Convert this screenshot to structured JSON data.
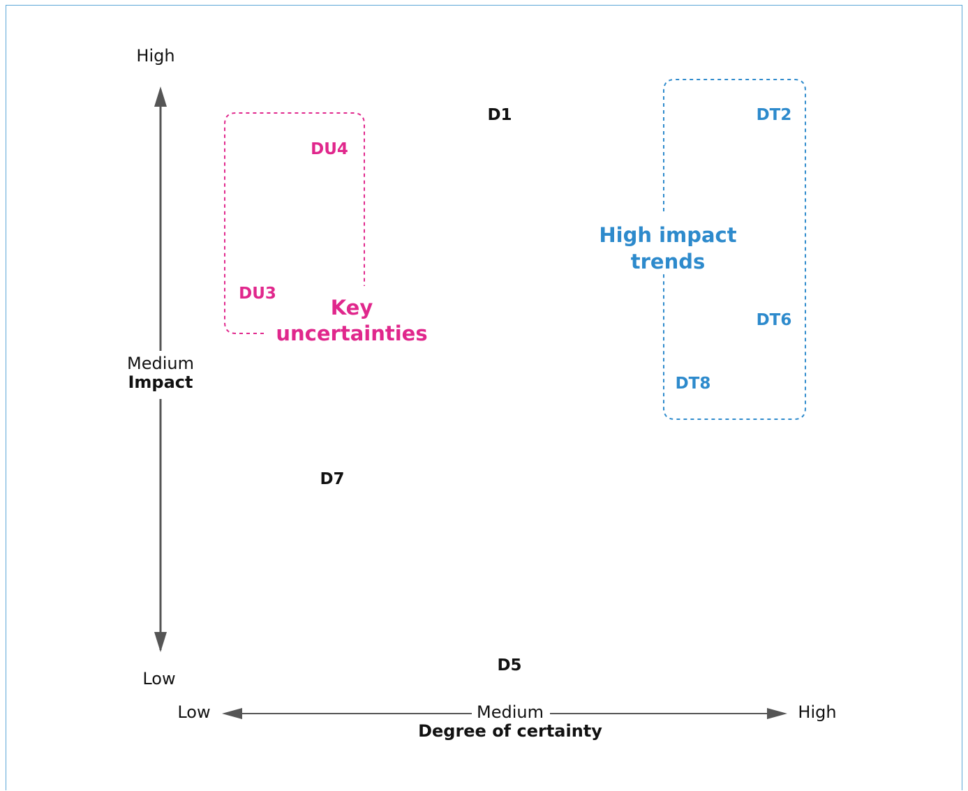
{
  "colors": {
    "uncertainty": "#e0278c",
    "trend": "#2d8acc",
    "driver": "#111111",
    "axis": "#555555",
    "frame": "#5aa6d6"
  },
  "y_axis": {
    "high": "High",
    "medium": "Medium",
    "title": "Impact",
    "low": "Low"
  },
  "x_axis": {
    "low": "Low",
    "medium": "Medium",
    "high": "High",
    "title": "Degree of certainty"
  },
  "drivers": {
    "d1": "D1",
    "d7": "D7",
    "d5": "D5"
  },
  "uncertainties": {
    "du4": "DU4",
    "du3": "DU3",
    "label_line1": "Key",
    "label_line2": "uncertainties"
  },
  "trends": {
    "dt2": "DT2",
    "dt6": "DT6",
    "dt8": "DT8",
    "label_line1": "High impact",
    "label_line2": "trends"
  }
}
